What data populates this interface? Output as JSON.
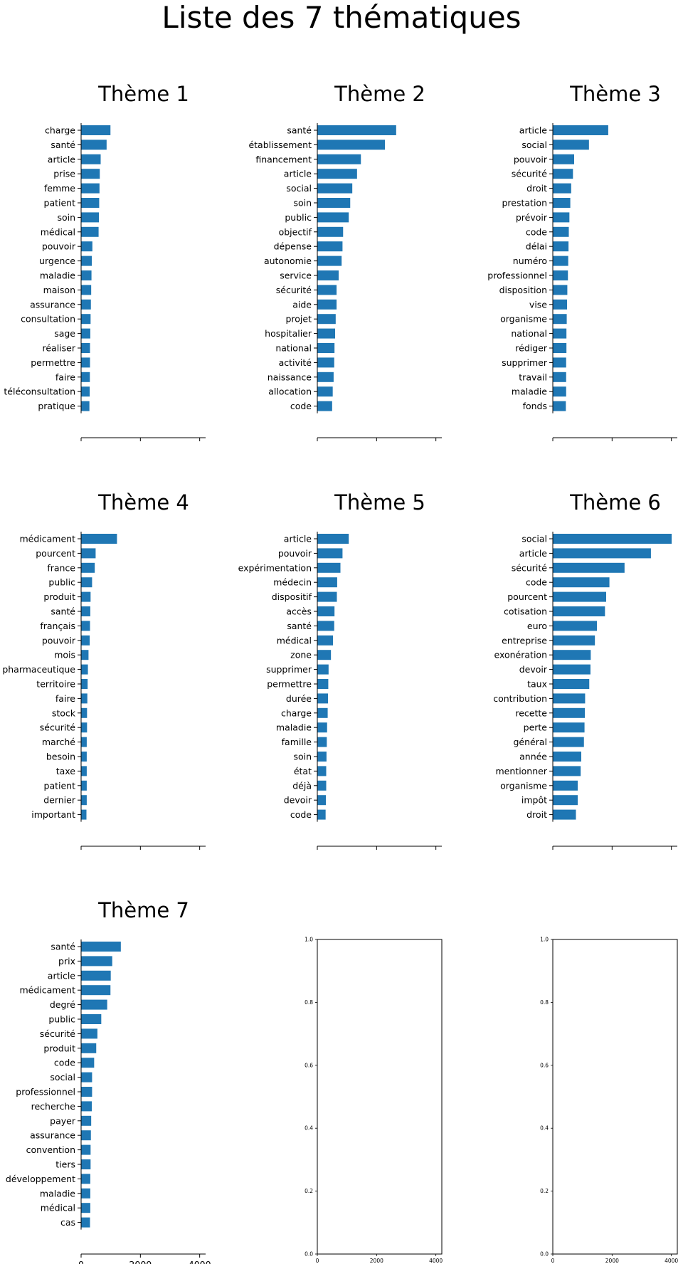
{
  "figure": {
    "title": "Liste des 7 thématiques"
  },
  "colors": {
    "bar": "#1f77b4",
    "axis": "#000000"
  },
  "chart_data": [
    {
      "type": "bar",
      "orientation": "horizontal",
      "title": "Thème 1",
      "xlim": [
        0,
        4200
      ],
      "xticks": [
        0,
        2000,
        4000
      ],
      "xtick_labels_visible": false,
      "categories": [
        "charge",
        "santé",
        "article",
        "prise",
        "femme",
        "patient",
        "soin",
        "médical",
        "pouvoir",
        "urgence",
        "maladie",
        "maison",
        "assurance",
        "consultation",
        "sage",
        "réaliser",
        "permettre",
        "faire",
        "téléconsultation",
        "pratique"
      ],
      "values": [
        990,
        860,
        660,
        630,
        620,
        610,
        600,
        590,
        380,
        360,
        350,
        340,
        330,
        320,
        310,
        300,
        300,
        295,
        290,
        280
      ]
    },
    {
      "type": "bar",
      "orientation": "horizontal",
      "title": "Thème 2",
      "xlim": [
        0,
        4200
      ],
      "xticks": [
        0,
        2000,
        4000
      ],
      "xtick_labels_visible": false,
      "categories": [
        "santé",
        "établissement",
        "financement",
        "article",
        "social",
        "soin",
        "public",
        "objectif",
        "dépense",
        "autonomie",
        "service",
        "sécurité",
        "aide",
        "projet",
        "hospitalier",
        "national",
        "activité",
        "naissance",
        "allocation",
        "code"
      ],
      "values": [
        2660,
        2280,
        1470,
        1340,
        1180,
        1110,
        1060,
        870,
        850,
        820,
        720,
        650,
        650,
        620,
        600,
        580,
        570,
        550,
        520,
        500
      ]
    },
    {
      "type": "bar",
      "orientation": "horizontal",
      "title": "Thème 3",
      "xlim": [
        0,
        4200
      ],
      "xticks": [
        0,
        2000,
        4000
      ],
      "xtick_labels_visible": false,
      "categories": [
        "article",
        "social",
        "pouvoir",
        "sécurité",
        "droit",
        "prestation",
        "prévoir",
        "code",
        "délai",
        "numéro",
        "professionnel",
        "disposition",
        "vise",
        "organisme",
        "national",
        "rédiger",
        "supprimer",
        "travail",
        "maladie",
        "fonds"
      ],
      "values": [
        1870,
        1220,
        720,
        680,
        620,
        590,
        560,
        540,
        530,
        520,
        510,
        490,
        480,
        470,
        460,
        460,
        450,
        450,
        450,
        440
      ]
    },
    {
      "type": "bar",
      "orientation": "horizontal",
      "title": "Thème 4",
      "xlim": [
        0,
        4200
      ],
      "xticks": [
        0,
        2000,
        4000
      ],
      "xtick_labels_visible": false,
      "categories": [
        "médicament",
        "pourcent",
        "france",
        "public",
        "produit",
        "santé",
        "français",
        "pouvoir",
        "mois",
        "pharmaceutique",
        "territoire",
        "faire",
        "stock",
        "sécurité",
        "marché",
        "besoin",
        "taxe",
        "patient",
        "dernier",
        "important"
      ],
      "values": [
        1210,
        490,
        460,
        370,
        320,
        310,
        300,
        290,
        250,
        230,
        220,
        210,
        200,
        200,
        190,
        190,
        190,
        190,
        190,
        180
      ]
    },
    {
      "type": "bar",
      "orientation": "horizontal",
      "title": "Thème 5",
      "xlim": [
        0,
        4200
      ],
      "xticks": [
        0,
        2000,
        4000
      ],
      "xtick_labels_visible": false,
      "categories": [
        "article",
        "pouvoir",
        "expérimentation",
        "médecin",
        "dispositif",
        "accès",
        "santé",
        "médical",
        "zone",
        "supprimer",
        "permettre",
        "durée",
        "charge",
        "maladie",
        "famille",
        "soin",
        "état",
        "déjà",
        "devoir",
        "code"
      ],
      "values": [
        1060,
        850,
        780,
        670,
        660,
        580,
        570,
        530,
        460,
        380,
        370,
        360,
        350,
        330,
        320,
        310,
        300,
        300,
        290,
        280
      ]
    },
    {
      "type": "bar",
      "orientation": "horizontal",
      "title": "Thème 6",
      "xlim": [
        0,
        4200
      ],
      "xticks": [
        0,
        2000,
        4000
      ],
      "xtick_labels_visible": false,
      "categories": [
        "social",
        "article",
        "sécurité",
        "code",
        "pourcent",
        "cotisation",
        "euro",
        "entreprise",
        "exonération",
        "devoir",
        "taux",
        "contribution",
        "recette",
        "perte",
        "général",
        "année",
        "mentionner",
        "organisme",
        "impôt",
        "droit"
      ],
      "values": [
        4010,
        3310,
        2420,
        1910,
        1800,
        1760,
        1490,
        1420,
        1280,
        1270,
        1230,
        1090,
        1080,
        1070,
        1050,
        960,
        940,
        840,
        840,
        780
      ]
    },
    {
      "type": "bar",
      "orientation": "horizontal",
      "title": "Thème 7",
      "xlim": [
        0,
        4200
      ],
      "xticks": [
        0,
        2000,
        4000
      ],
      "xtick_labels_visible": true,
      "categories": [
        "santé",
        "prix",
        "article",
        "médicament",
        "degré",
        "public",
        "sécurité",
        "produit",
        "code",
        "social",
        "professionnel",
        "recherche",
        "payer",
        "assurance",
        "convention",
        "tiers",
        "développement",
        "maladie",
        "médical",
        "cas"
      ],
      "values": [
        1340,
        1050,
        1000,
        990,
        880,
        680,
        550,
        510,
        440,
        370,
        370,
        360,
        340,
        330,
        320,
        320,
        310,
        310,
        310,
        300
      ]
    },
    {
      "type": "empty",
      "xlim": [
        0,
        4200
      ],
      "ylim": [
        0,
        1
      ],
      "xticks": [
        0,
        2000,
        4000
      ],
      "yticks": [
        0.0,
        0.2,
        0.4,
        0.6,
        0.8,
        1.0
      ]
    },
    {
      "type": "empty",
      "xlim": [
        0,
        4200
      ],
      "ylim": [
        0,
        1
      ],
      "xticks": [
        0,
        2000,
        4000
      ],
      "yticks": [
        0.0,
        0.2,
        0.4,
        0.6,
        0.8,
        1.0
      ]
    }
  ]
}
